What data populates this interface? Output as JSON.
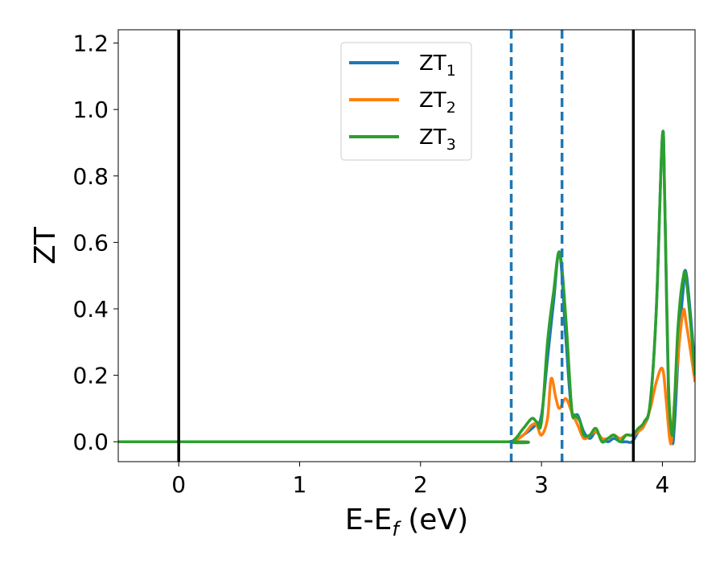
{
  "chart_data": {
    "type": "line",
    "xlabel": "E-E",
    "xlabel_sub": "f",
    "xlabel_unit": " (eV)",
    "ylabel": "ZT",
    "xlim": [
      -0.5,
      4.27
    ],
    "ylim": [
      -0.06,
      1.24
    ],
    "x_ticks": [
      0,
      1,
      2,
      3,
      4
    ],
    "y_ticks": [
      0.0,
      0.2,
      0.4,
      0.6,
      0.8,
      1.0,
      1.2
    ],
    "x_tick_labels": [
      "0",
      "1",
      "2",
      "3",
      "4"
    ],
    "y_tick_labels": [
      "0.0",
      "0.2",
      "0.4",
      "0.6",
      "0.8",
      "1.0",
      "1.2"
    ],
    "legend_position": "top-center",
    "vlines": [
      {
        "x": 0.0,
        "style": "solid",
        "color": "#000000"
      },
      {
        "x": 3.76,
        "style": "solid",
        "color": "#000000"
      },
      {
        "x": 2.75,
        "style": "dashed",
        "color": "#1f77b4"
      },
      {
        "x": 3.17,
        "style": "dashed",
        "color": "#1f77b4"
      }
    ],
    "series": [
      {
        "name": "ZT",
        "sub": "1",
        "color": "#1f77b4",
        "x": [
          -0.5,
          2.6,
          2.75,
          2.85,
          2.95,
          3.0,
          3.05,
          3.1,
          3.15,
          3.2,
          3.25,
          3.3,
          3.35,
          3.4,
          3.45,
          3.5,
          3.55,
          3.6,
          3.65,
          3.7,
          3.75,
          3.8,
          3.85,
          3.9,
          3.95,
          4.0,
          4.02,
          4.05,
          4.08,
          4.1,
          4.13,
          4.17,
          4.2,
          4.27
        ],
        "y": [
          0.0,
          0.0,
          0.0,
          0.02,
          0.05,
          0.08,
          0.25,
          0.42,
          0.57,
          0.32,
          0.09,
          0.08,
          0.03,
          0.01,
          0.03,
          0.01,
          0.0,
          0.01,
          0.0,
          0.0,
          0.0,
          0.03,
          0.05,
          0.12,
          0.4,
          0.92,
          0.72,
          0.15,
          0.0,
          0.05,
          0.25,
          0.45,
          0.5,
          0.22
        ]
      },
      {
        "name": "ZT",
        "sub": "2",
        "color": "#ff7f0e",
        "x": [
          -0.5,
          2.6,
          2.75,
          2.85,
          2.92,
          2.96,
          3.0,
          3.05,
          3.08,
          3.12,
          3.15,
          3.2,
          3.25,
          3.3,
          3.35,
          3.4,
          3.45,
          3.5,
          3.55,
          3.6,
          3.65,
          3.7,
          3.75,
          3.8,
          3.85,
          3.9,
          3.95,
          4.0,
          4.03,
          4.06,
          4.08,
          4.12,
          4.17,
          4.2,
          4.27
        ],
        "y": [
          0.0,
          0.0,
          0.0,
          0.02,
          0.05,
          0.05,
          0.02,
          0.07,
          0.19,
          0.13,
          0.1,
          0.13,
          0.09,
          0.05,
          0.01,
          0.02,
          0.03,
          0.01,
          0.01,
          0.02,
          0.01,
          0.02,
          0.02,
          0.03,
          0.05,
          0.1,
          0.18,
          0.22,
          0.13,
          0.01,
          0.02,
          0.22,
          0.39,
          0.35,
          0.18
        ]
      },
      {
        "name": "ZT",
        "sub": "3",
        "color": "#2ca02c",
        "x": [
          -0.5,
          2.6,
          2.75,
          2.85,
          2.92,
          2.96,
          3.0,
          3.05,
          3.1,
          3.15,
          3.2,
          3.25,
          3.28,
          3.32,
          3.35,
          3.4,
          3.45,
          3.5,
          3.55,
          3.6,
          3.65,
          3.7,
          3.75,
          3.8,
          3.85,
          3.9,
          3.95,
          4.0,
          4.02,
          4.05,
          4.08,
          4.1,
          4.13,
          4.17,
          4.2,
          4.27
        ],
        "y": [
          0.0,
          0.0,
          0.0,
          0.04,
          0.07,
          0.06,
          0.06,
          0.3,
          0.45,
          0.57,
          0.38,
          0.1,
          0.08,
          0.06,
          0.02,
          0.02,
          0.04,
          0.0,
          0.01,
          0.02,
          0.0,
          0.02,
          0.02,
          0.04,
          0.06,
          0.12,
          0.4,
          0.92,
          0.72,
          0.18,
          0.02,
          0.12,
          0.35,
          0.49,
          0.48,
          0.2
        ]
      }
    ]
  }
}
